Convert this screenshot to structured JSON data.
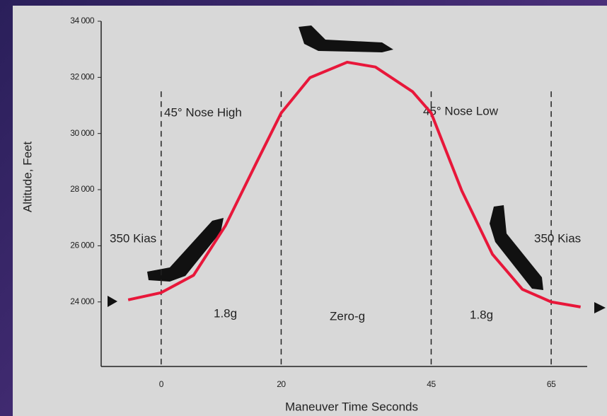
{
  "chart_data": {
    "type": "line",
    "xlabel": "Maneuver Time Seconds",
    "ylabel": "Altitude, Feet",
    "x": [
      -5.5,
      0,
      5.4,
      10.7,
      15.9,
      20,
      24.8,
      31,
      35.7,
      41.9,
      45,
      50.1,
      55.2,
      60.2,
      65,
      69.9
    ],
    "series": [
      {
        "color": "#e8173a",
        "values": [
          24075,
          24330,
          24950,
          26710,
          28970,
          30730,
          31990,
          32540,
          32370,
          31490,
          30730,
          27960,
          25700,
          24450,
          24000,
          23820
        ]
      }
    ],
    "xlim": [
      -10,
      71
    ],
    "xticks": [
      0,
      20,
      45,
      65
    ],
    "ylim": [
      21700,
      34000
    ],
    "yticks": [
      {
        "value": 24000,
        "label": "24 000"
      },
      {
        "value": 26000,
        "label": "26 000"
      },
      {
        "value": 28000,
        "label": "28 000"
      },
      {
        "value": 30000,
        "label": "30 000"
      },
      {
        "value": 32000,
        "label": "32 000"
      },
      {
        "value": 34000,
        "label": "34 000"
      }
    ],
    "annotations": [
      "45° Nose High",
      "45° Nose Low",
      "350 Kias",
      "350 Kias",
      "1.8g",
      "Zero-g",
      "1.8g"
    ]
  }
}
